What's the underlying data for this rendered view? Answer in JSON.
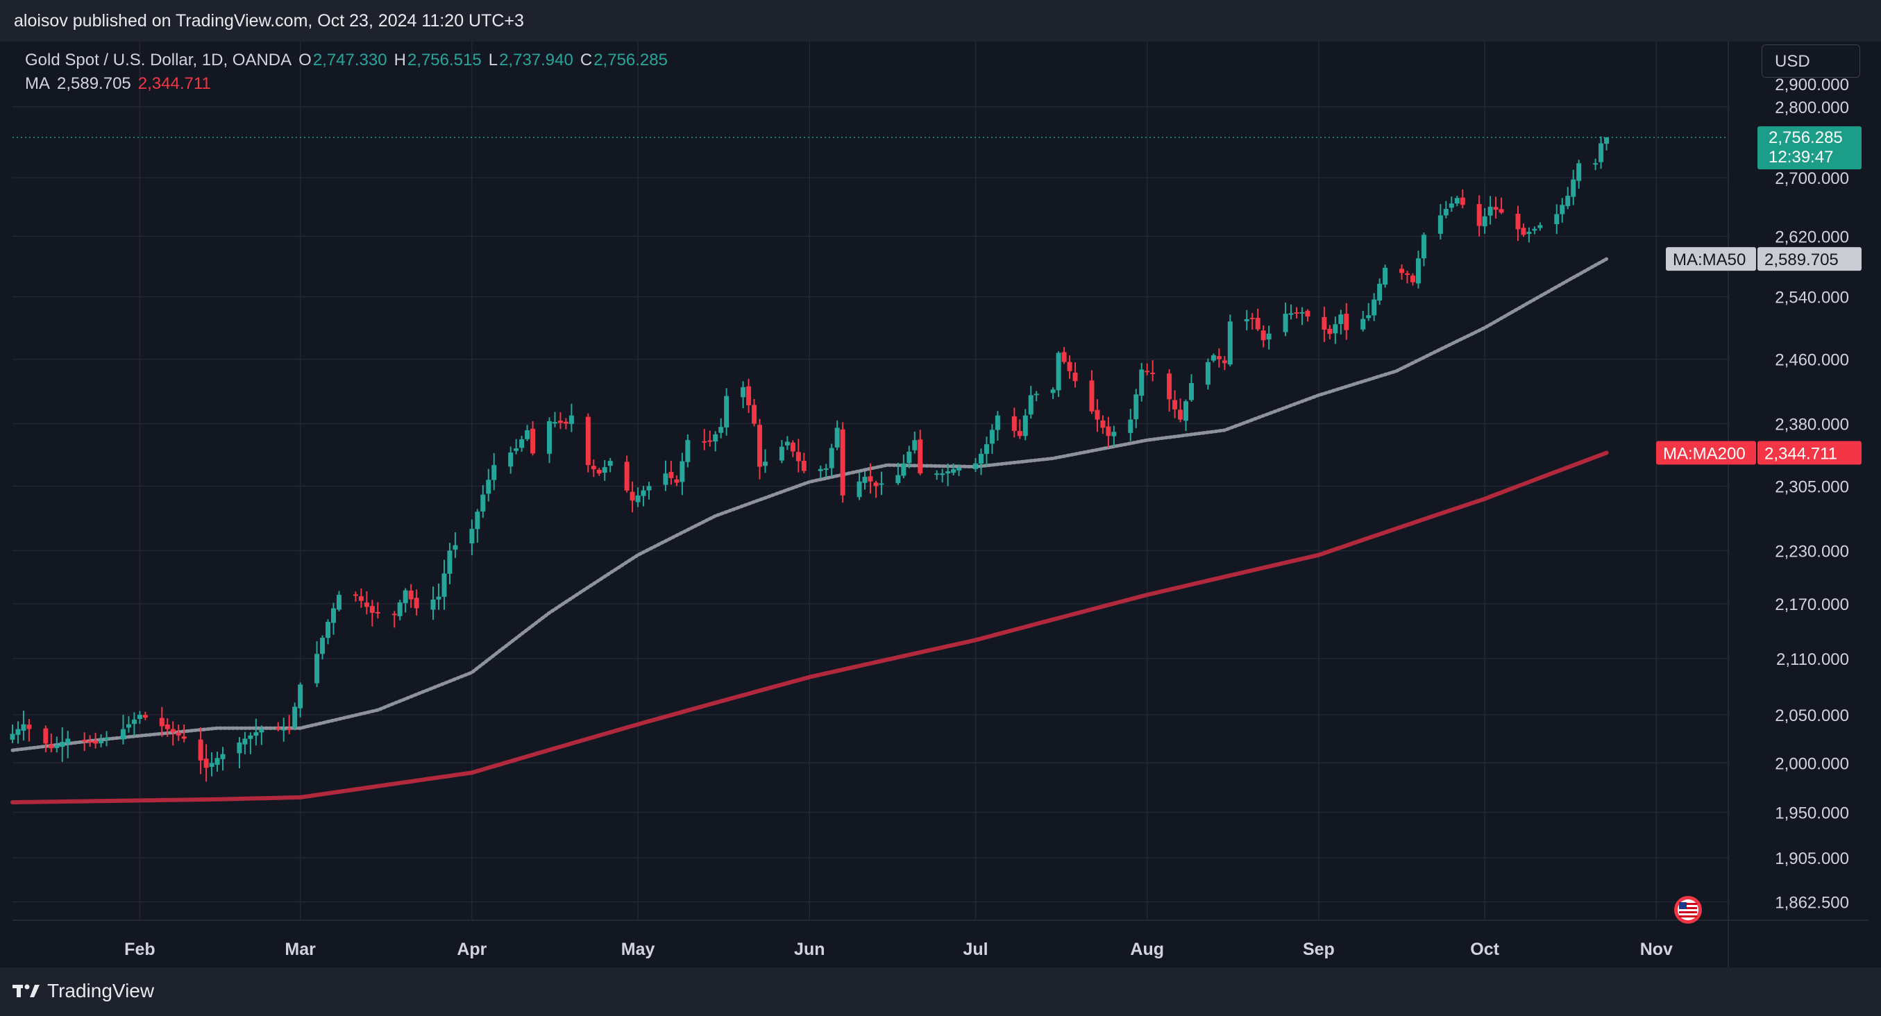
{
  "header": {
    "published_text": "aloisov published on TradingView.com, Oct 23, 2024 11:20 UTC+3"
  },
  "legend": {
    "symbol": "Gold Spot / U.S. Dollar, 1D, OANDA",
    "o_label": "O",
    "open": "2,747.330",
    "h_label": "H",
    "high": "2,756.515",
    "l_label": "L",
    "low": "2,737.940",
    "c_label": "C",
    "close": "2,756.285",
    "ma_label": "MA",
    "ma50_value": "2,589.705",
    "ma200_value": "2,344.711"
  },
  "currency": "USD",
  "footer": {
    "brand": "TradingView",
    "logo_icon": "tradingview-logo-icon"
  },
  "colors": {
    "background": "#131722",
    "up": "#26a69a",
    "down": "#f23645",
    "ma50": "#8e929c",
    "ma200": "#b2283d",
    "price_label": "#1b9d87"
  },
  "chart_data": {
    "type": "candlestick",
    "x_ticks": [
      "Feb",
      "Mar",
      "Apr",
      "May",
      "Jun",
      "Jul",
      "Aug",
      "Sep",
      "Oct",
      "Nov"
    ],
    "y_ticks": [
      "1,862.500",
      "1,905.000",
      "1,950.000",
      "2,000.000",
      "2,050.000",
      "2,110.000",
      "2,170.000",
      "2,230.000",
      "2,305.000",
      "2,380.000",
      "2,460.000",
      "2,540.000",
      "2,620.000",
      "2,700.000",
      "2,800.000"
    ],
    "y_scale": "log",
    "ylim": [
      1845,
      2895
    ],
    "x_start": "2024-01-09",
    "x_end": "2024-11-14",
    "last_price": {
      "value": 2756.285,
      "label": "2,756.285",
      "countdown": "12:39:47"
    },
    "ma50_label": {
      "name": "MA:MA50",
      "value": 2589.705,
      "value_label": "2,589.705"
    },
    "ma200_label": {
      "name": "MA:MA200",
      "value": 2344.711,
      "value_label": "2,344.711"
    },
    "close_anchors": [
      [
        "2024-01-09",
        2030
      ],
      [
        "2024-01-11",
        2040
      ],
      [
        "2024-01-16",
        2015
      ],
      [
        "2024-01-19",
        2025
      ],
      [
        "2024-01-24",
        2020
      ],
      [
        "2024-01-29",
        2035
      ],
      [
        "2024-02-01",
        2050
      ],
      [
        "2024-02-06",
        2035
      ],
      [
        "2024-02-09",
        2025
      ],
      [
        "2024-02-13",
        1995
      ],
      [
        "2024-02-15",
        2005
      ],
      [
        "2024-02-20",
        2025
      ],
      [
        "2024-02-23",
        2035
      ],
      [
        "2024-02-28",
        2035
      ],
      [
        "2024-03-01",
        2082
      ],
      [
        "2024-03-04",
        2115
      ],
      [
        "2024-03-06",
        2150
      ],
      [
        "2024-03-08",
        2180
      ],
      [
        "2024-03-11",
        2180
      ],
      [
        "2024-03-14",
        2160
      ],
      [
        "2024-03-18",
        2158
      ],
      [
        "2024-03-20",
        2185
      ],
      [
        "2024-03-22",
        2165
      ],
      [
        "2024-03-26",
        2178
      ],
      [
        "2024-03-28",
        2230
      ],
      [
        "2024-04-01",
        2255
      ],
      [
        "2024-04-03",
        2295
      ],
      [
        "2024-04-05",
        2330
      ],
      [
        "2024-04-09",
        2350
      ],
      [
        "2024-04-11",
        2372
      ],
      [
        "2024-04-12",
        2344
      ],
      [
        "2024-04-15",
        2383
      ],
      [
        "2024-04-18",
        2380
      ],
      [
        "2024-04-19",
        2390
      ],
      [
        "2024-04-22",
        2330
      ],
      [
        "2024-04-24",
        2320
      ],
      [
        "2024-04-26",
        2335
      ],
      [
        "2024-04-30",
        2288
      ],
      [
        "2024-05-02",
        2300
      ],
      [
        "2024-05-06",
        2320
      ],
      [
        "2024-05-08",
        2309
      ],
      [
        "2024-05-10",
        2360
      ],
      [
        "2024-05-14",
        2358
      ],
      [
        "2024-05-16",
        2376
      ],
      [
        "2024-05-17",
        2414
      ],
      [
        "2024-05-20",
        2425
      ],
      [
        "2024-05-22",
        2380
      ],
      [
        "2024-05-23",
        2328
      ],
      [
        "2024-05-28",
        2358
      ],
      [
        "2024-05-31",
        2323
      ],
      [
        "2024-06-04",
        2326
      ],
      [
        "2024-06-06",
        2375
      ],
      [
        "2024-06-07",
        2294
      ],
      [
        "2024-06-11",
        2316
      ],
      [
        "2024-06-13",
        2305
      ],
      [
        "2024-06-17",
        2318
      ],
      [
        "2024-06-20",
        2360
      ],
      [
        "2024-06-21",
        2320
      ],
      [
        "2024-06-25",
        2320
      ],
      [
        "2024-06-27",
        2325
      ],
      [
        "2024-07-01",
        2332
      ],
      [
        "2024-07-03",
        2355
      ],
      [
        "2024-07-05",
        2390
      ],
      [
        "2024-07-09",
        2365
      ],
      [
        "2024-07-11",
        2415
      ],
      [
        "2024-07-15",
        2422
      ],
      [
        "2024-07-16",
        2468
      ],
      [
        "2024-07-18",
        2445
      ],
      [
        "2024-07-22",
        2395
      ],
      [
        "2024-07-25",
        2365
      ],
      [
        "2024-07-29",
        2385
      ],
      [
        "2024-07-31",
        2447
      ],
      [
        "2024-08-02",
        2443
      ],
      [
        "2024-08-05",
        2410
      ],
      [
        "2024-08-07",
        2385
      ],
      [
        "2024-08-09",
        2430
      ],
      [
        "2024-08-13",
        2465
      ],
      [
        "2024-08-15",
        2455
      ],
      [
        "2024-08-16",
        2508
      ],
      [
        "2024-08-20",
        2512
      ],
      [
        "2024-08-22",
        2484
      ],
      [
        "2024-08-26",
        2518
      ],
      [
        "2024-08-29",
        2520
      ],
      [
        "2024-09-03",
        2492
      ],
      [
        "2024-09-05",
        2517
      ],
      [
        "2024-09-06",
        2497
      ],
      [
        "2024-09-10",
        2516
      ],
      [
        "2024-09-12",
        2557
      ],
      [
        "2024-09-13",
        2578
      ],
      [
        "2024-09-17",
        2569
      ],
      [
        "2024-09-18",
        2559
      ],
      [
        "2024-09-20",
        2622
      ],
      [
        "2024-09-24",
        2657
      ],
      [
        "2024-09-26",
        2672
      ],
      [
        "2024-09-30",
        2634
      ],
      [
        "2024-10-02",
        2660
      ],
      [
        "2024-10-04",
        2652
      ],
      [
        "2024-10-08",
        2622
      ],
      [
        "2024-10-10",
        2630
      ],
      [
        "2024-10-14",
        2650
      ],
      [
        "2024-10-16",
        2675
      ],
      [
        "2024-10-18",
        2720
      ],
      [
        "2024-10-21",
        2720
      ],
      [
        "2024-10-22",
        2748
      ],
      [
        "2024-10-23",
        2756.285
      ]
    ],
    "ma50_anchors": [
      [
        "2024-01-09",
        2013
      ],
      [
        "2024-01-25",
        2024
      ],
      [
        "2024-02-15",
        2036
      ],
      [
        "2024-03-01",
        2036
      ],
      [
        "2024-03-15",
        2055
      ],
      [
        "2024-04-01",
        2095
      ],
      [
        "2024-04-15",
        2160
      ],
      [
        "2024-05-01",
        2225
      ],
      [
        "2024-05-15",
        2270
      ],
      [
        "2024-06-01",
        2310
      ],
      [
        "2024-06-15",
        2330
      ],
      [
        "2024-07-01",
        2328
      ],
      [
        "2024-07-15",
        2338
      ],
      [
        "2024-08-01",
        2360
      ],
      [
        "2024-08-15",
        2372
      ],
      [
        "2024-09-01",
        2415
      ],
      [
        "2024-09-15",
        2445
      ],
      [
        "2024-10-01",
        2500
      ],
      [
        "2024-10-23",
        2589.705
      ]
    ],
    "ma200_anchors": [
      [
        "2024-01-09",
        1960
      ],
      [
        "2024-02-15",
        1963
      ],
      [
        "2024-03-01",
        1965
      ],
      [
        "2024-04-01",
        1990
      ],
      [
        "2024-05-01",
        2040
      ],
      [
        "2024-06-01",
        2090
      ],
      [
        "2024-07-01",
        2130
      ],
      [
        "2024-08-01",
        2180
      ],
      [
        "2024-09-01",
        2225
      ],
      [
        "2024-10-01",
        2290
      ],
      [
        "2024-10-23",
        2344.711
      ]
    ]
  }
}
